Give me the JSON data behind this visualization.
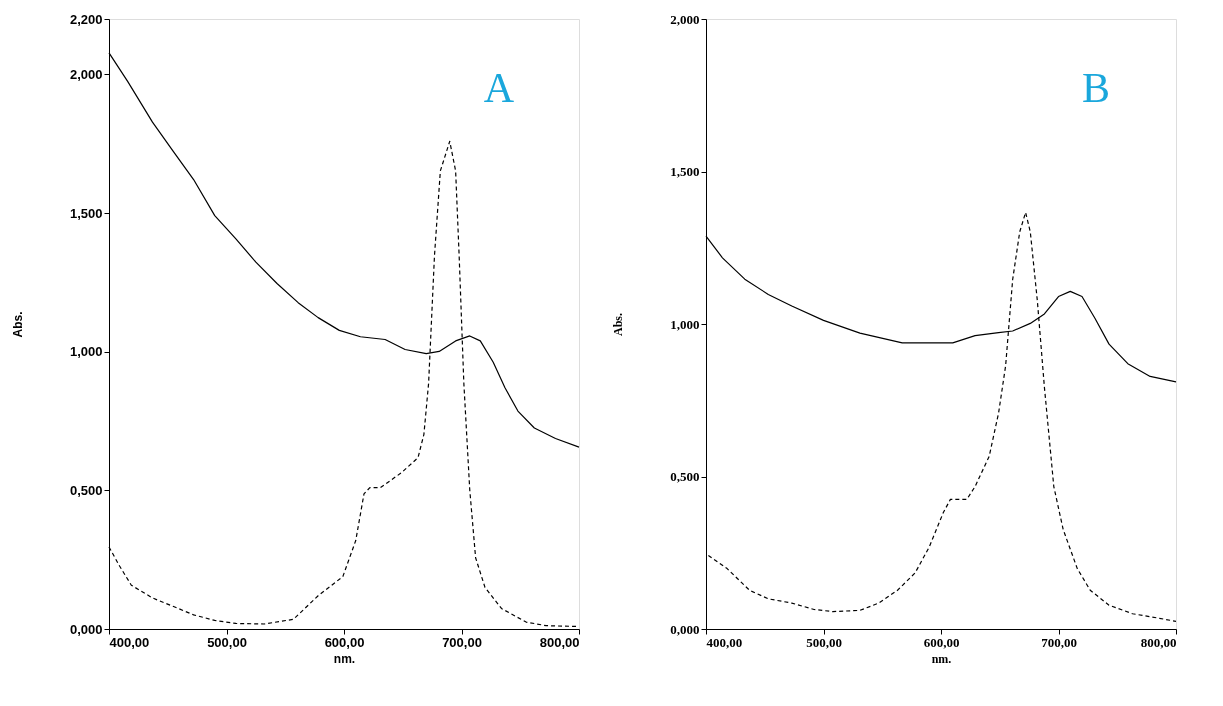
{
  "chart_data": [
    {
      "type": "line",
      "xlabel": "nm.",
      "ylabel": "Abs.",
      "annotations": [
        "A"
      ],
      "grid": false,
      "xlim": [
        400,
        800
      ],
      "xticks": [
        {
          "value": 400,
          "label": "400,00"
        },
        {
          "value": 500,
          "label": "500,00"
        },
        {
          "value": 600,
          "label": "600,00"
        },
        {
          "value": 700,
          "label": "700,00"
        },
        {
          "value": 800,
          "label": "800,00"
        }
      ],
      "ylim": [
        0,
        2.2
      ],
      "yticks": [
        {
          "value": 0,
          "label": "0,000"
        },
        {
          "value": 0.5,
          "label": "0,500"
        },
        {
          "value": 1,
          "label": "1,000"
        },
        {
          "value": 1.5,
          "label": "1,500"
        },
        {
          "value": 2,
          "label": "2,000"
        },
        {
          "value": 2.2,
          "label": "2,200"
        }
      ],
      "series": [
        {
          "color": "#000000",
          "line_style": "solid",
          "x": [
            400,
            416,
            437,
            455,
            472,
            490,
            508,
            525,
            543,
            561,
            578,
            596,
            614,
            635,
            652,
            670,
            681,
            695,
            707,
            716,
            727,
            737,
            748,
            762,
            780,
            800
          ],
          "values": [
            2.078,
            1.974,
            1.828,
            1.721,
            1.621,
            1.491,
            1.407,
            1.323,
            1.246,
            1.177,
            1.123,
            1.077,
            1.054,
            1.044,
            1.008,
            0.993,
            1.001,
            1.039,
            1.057,
            1.039,
            0.962,
            0.87,
            0.786,
            0.725,
            0.687,
            0.656
          ]
        },
        {
          "color": "#000000",
          "line_style": "dashed",
          "x": [
            400,
            409,
            419,
            437,
            455,
            472,
            490,
            508,
            532,
            557,
            578,
            599,
            610,
            617,
            622,
            631,
            649,
            663,
            668,
            672,
            677,
            682,
            690,
            695,
            698,
            702,
            707,
            712,
            720,
            734,
            755,
            772,
            800
          ],
          "values": [
            0.296,
            0.227,
            0.158,
            0.112,
            0.081,
            0.051,
            0.031,
            0.02,
            0.018,
            0.035,
            0.12,
            0.189,
            0.319,
            0.487,
            0.51,
            0.51,
            0.564,
            0.618,
            0.702,
            0.886,
            1.346,
            1.652,
            1.759,
            1.652,
            1.346,
            0.886,
            0.503,
            0.257,
            0.15,
            0.074,
            0.025,
            0.012,
            0.009
          ]
        }
      ]
    },
    {
      "type": "line",
      "xlabel": "nm.",
      "ylabel": "Abs.",
      "annotations": [
        "B"
      ],
      "grid": false,
      "xlim": [
        400,
        800
      ],
      "xticks": [
        {
          "value": 400,
          "label": "400,00"
        },
        {
          "value": 500,
          "label": "500,00"
        },
        {
          "value": 600,
          "label": "600,00"
        },
        {
          "value": 700,
          "label": "700,00"
        },
        {
          "value": 800,
          "label": "800,00"
        }
      ],
      "ylim": [
        0,
        2
      ],
      "yticks": [
        {
          "value": 0,
          "label": "0,000"
        },
        {
          "value": 0.5,
          "label": "0,500"
        },
        {
          "value": 1,
          "label": "1,000"
        },
        {
          "value": 1.5,
          "label": "1,500"
        },
        {
          "value": 2,
          "label": "2,000"
        }
      ],
      "series": [
        {
          "color": "#000000",
          "line_style": "solid",
          "x": [
            400,
            414,
            433,
            453,
            473,
            500,
            531,
            567,
            610,
            629,
            649,
            661,
            676,
            688,
            700,
            710,
            720,
            731,
            743,
            759,
            778,
            800
          ],
          "values": [
            1.288,
            1.217,
            1.147,
            1.097,
            1.059,
            1.012,
            0.97,
            0.938,
            0.938,
            0.962,
            0.972,
            0.977,
            1.002,
            1.033,
            1.09,
            1.107,
            1.09,
            1.019,
            0.934,
            0.87,
            0.828,
            0.81
          ]
        },
        {
          "color": "#000000",
          "line_style": "dashed",
          "x": [
            402,
            418,
            437,
            453,
            473,
            492,
            508,
            531,
            547,
            563,
            578,
            590,
            602,
            608,
            622,
            629,
            641,
            649,
            655,
            661,
            667,
            672,
            676,
            682,
            688,
            696,
            704,
            716,
            727,
            743,
            763,
            786,
            800
          ],
          "values": [
            0.241,
            0.198,
            0.127,
            0.099,
            0.085,
            0.064,
            0.057,
            0.061,
            0.085,
            0.127,
            0.184,
            0.269,
            0.382,
            0.425,
            0.425,
            0.467,
            0.566,
            0.708,
            0.863,
            1.146,
            1.302,
            1.366,
            1.302,
            1.076,
            0.793,
            0.467,
            0.326,
            0.198,
            0.127,
            0.078,
            0.05,
            0.035,
            0.025
          ]
        }
      ]
    }
  ]
}
